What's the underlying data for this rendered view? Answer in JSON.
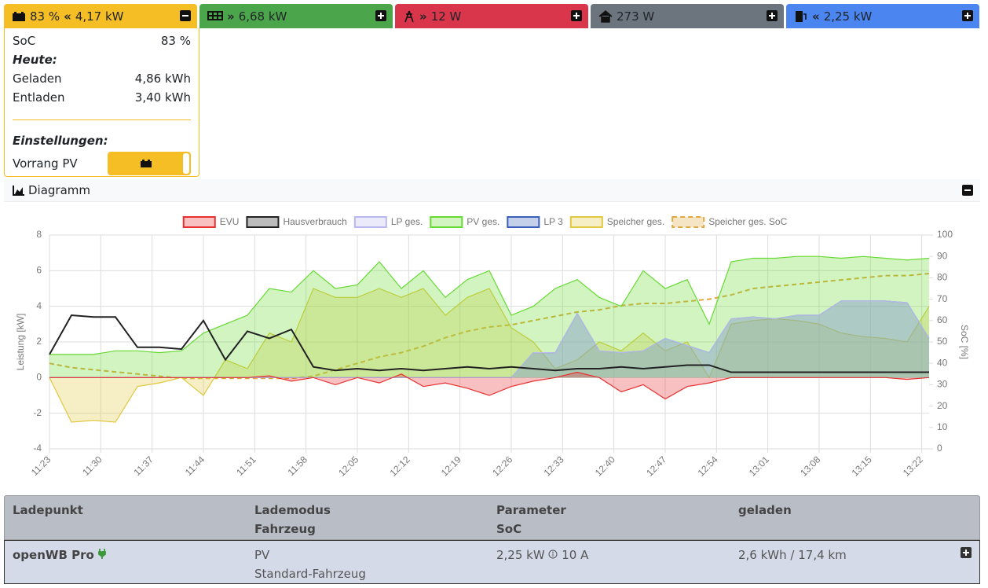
{
  "tiles": [
    [
      "83 %",
      "4,17 kW"
    ],
    [
      "6,68 kW"
    ],
    [
      "12 W"
    ],
    [
      "273 W"
    ],
    [
      "2,25 kW"
    ]
  ],
  "battery_panel": {
    "soc_label": "SoC",
    "soc": "83 %",
    "today": "Heute:",
    "rows": [
      [
        "Geladen",
        "4,86 kWh"
      ],
      [
        "Entladen",
        "3,40 kWh"
      ]
    ],
    "settings": "Einstellungen:",
    "priority": "Vorrang PV"
  },
  "diagram": {
    "title": "Diagramm"
  },
  "chart_data": {
    "type": "area",
    "ylabel": "Leistung [kW]",
    "y2label": "SoC [%]",
    "x": [
      "11:23",
      "11:26",
      "11:29",
      "11:32",
      "11:35",
      "11:38",
      "11:41",
      "11:44",
      "11:47",
      "11:50",
      "11:53",
      "11:56",
      "11:59",
      "12:02",
      "12:05",
      "12:08",
      "12:11",
      "12:14",
      "12:17",
      "12:20",
      "12:23",
      "12:26",
      "12:29",
      "12:32",
      "12:35",
      "12:38",
      "12:41",
      "12:44",
      "12:47",
      "12:50",
      "12:53",
      "12:56",
      "12:59",
      "13:02",
      "13:05",
      "13:08",
      "13:11",
      "13:14",
      "13:17",
      "13:20",
      "13:23"
    ],
    "xlim": [
      "11:23",
      "13:23"
    ],
    "xticks": [
      "11:23",
      "11:30",
      "11:37",
      "11:44",
      "11:51",
      "11:58",
      "12:05",
      "12:12",
      "12:19",
      "12:26",
      "12:33",
      "12:40",
      "12:47",
      "12:54",
      "13:01",
      "13:08",
      "13:15",
      "13:22"
    ],
    "ylim": [
      -4,
      8
    ],
    "yticks": [
      -4,
      -2,
      0,
      2,
      4,
      6,
      8
    ],
    "y2lim": [
      0,
      100
    ],
    "y2ticks": [
      0,
      10,
      20,
      30,
      40,
      50,
      60,
      70,
      80,
      90,
      100
    ],
    "grid": true,
    "legend": "top",
    "series": [
      {
        "name": "EVU",
        "color": "#e83030",
        "fill": true,
        "dashed": false,
        "values": [
          0,
          0,
          0,
          0,
          0,
          0,
          0,
          0,
          0,
          0,
          0.1,
          -0.2,
          0,
          -0.4,
          0,
          -0.3,
          0.2,
          -0.5,
          -0.3,
          -0.6,
          -1.0,
          -0.5,
          -0.2,
          0,
          0.3,
          0,
          -0.8,
          -0.4,
          -1.2,
          -0.5,
          -0.3,
          0,
          0,
          0,
          0,
          0,
          0,
          0,
          0,
          -0.1,
          0
        ]
      },
      {
        "name": "Hausverbrauch",
        "color": "#222222",
        "fill": false,
        "dashed": false,
        "values": [
          1.3,
          3.5,
          3.4,
          3.4,
          1.7,
          1.7,
          1.6,
          3.2,
          1.0,
          2.6,
          2.2,
          2.7,
          0.6,
          0.4,
          0.5,
          0.4,
          0.5,
          0.4,
          0.5,
          0.6,
          0.5,
          0.6,
          0.5,
          0.4,
          0.5,
          0.5,
          0.6,
          0.5,
          0.6,
          0.7,
          0.7,
          0.3,
          0.3,
          0.3,
          0.3,
          0.3,
          0.3,
          0.3,
          0.3,
          0.3,
          0.3
        ]
      },
      {
        "name": "LP ges.",
        "color": "#b8b8ee",
        "fill": true,
        "dashed": false,
        "values": [
          0,
          0,
          0,
          0,
          0,
          0,
          0,
          0,
          0,
          0,
          0,
          0,
          0,
          0,
          0,
          0,
          0,
          0,
          0,
          0,
          0,
          0,
          1.4,
          1.4,
          3.6,
          1.5,
          1.4,
          1.5,
          2.2,
          1.8,
          1.4,
          3.3,
          3.4,
          3.3,
          3.5,
          3.5,
          4.3,
          4.3,
          4.3,
          4.2,
          2.2
        ]
      },
      {
        "name": "PV ges.",
        "color": "#66d933",
        "fill": true,
        "dashed": false,
        "values": [
          1.3,
          1.3,
          1.3,
          1.5,
          1.5,
          1.4,
          1.5,
          2.5,
          3.0,
          3.5,
          5.0,
          4.8,
          6.0,
          5.0,
          5.2,
          6.5,
          5.0,
          6.0,
          4.5,
          5.5,
          6.0,
          3.5,
          4.0,
          5.0,
          5.5,
          4.5,
          4.0,
          6.0,
          5.0,
          5.5,
          3.0,
          6.5,
          6.7,
          6.7,
          6.8,
          6.8,
          6.7,
          6.8,
          6.7,
          6.6,
          6.7
        ]
      },
      {
        "name": "LP 3",
        "color": "#3a5fb8",
        "fill": true,
        "dashed": false,
        "values": [
          0,
          0,
          0,
          0,
          0,
          0,
          0,
          0,
          0,
          0,
          0,
          0,
          0,
          0,
          0,
          0,
          0,
          0,
          0,
          0,
          0,
          0,
          1.4,
          1.4,
          3.6,
          1.5,
          1.4,
          1.5,
          2.2,
          1.8,
          1.4,
          3.3,
          3.4,
          3.3,
          3.5,
          3.5,
          4.3,
          4.3,
          4.3,
          4.2,
          2.2
        ]
      },
      {
        "name": "Speicher ges.",
        "color": "#e0c840",
        "fill": true,
        "dashed": false,
        "values": [
          0,
          -2.5,
          -2.4,
          -2.5,
          -0.5,
          -0.3,
          0,
          -1.0,
          1.0,
          0.5,
          2.5,
          2.0,
          5.0,
          4.5,
          4.5,
          5.0,
          4.5,
          5.0,
          3.5,
          4.5,
          5.0,
          2.8,
          2.0,
          0.5,
          1.0,
          2.0,
          1.5,
          2.5,
          1.5,
          2.0,
          0,
          3.0,
          3.2,
          3.3,
          3.2,
          3.0,
          2.5,
          2.3,
          2.2,
          2.0,
          4.0
        ]
      },
      {
        "name": "Speicher ges. SoC",
        "color": "#e0a840",
        "fill": false,
        "dashed": true,
        "axis": "y2",
        "values": [
          40,
          38,
          37,
          36,
          35,
          34,
          33,
          33,
          33,
          33,
          33,
          33,
          34,
          37,
          40,
          43,
          45,
          48,
          52,
          55,
          57,
          58,
          60,
          62,
          64,
          65,
          67,
          68,
          68,
          69,
          70,
          72,
          75,
          76,
          77,
          78,
          79,
          80,
          81,
          81,
          82
        ]
      }
    ]
  },
  "table": {
    "headers": [
      [
        "Ladepunkt"
      ],
      [
        "Lademodus",
        "Fahrzeug"
      ],
      [
        "Parameter",
        "SoC"
      ],
      [
        "geladen"
      ]
    ],
    "rows": [
      {
        "name": "openWB Pro",
        "mode": "PV",
        "vehicle": "Standard-Fahrzeug",
        "power": "2,25 kW",
        "current": "10 A",
        "charged": "2,6 kWh / 17,4 km"
      }
    ]
  }
}
